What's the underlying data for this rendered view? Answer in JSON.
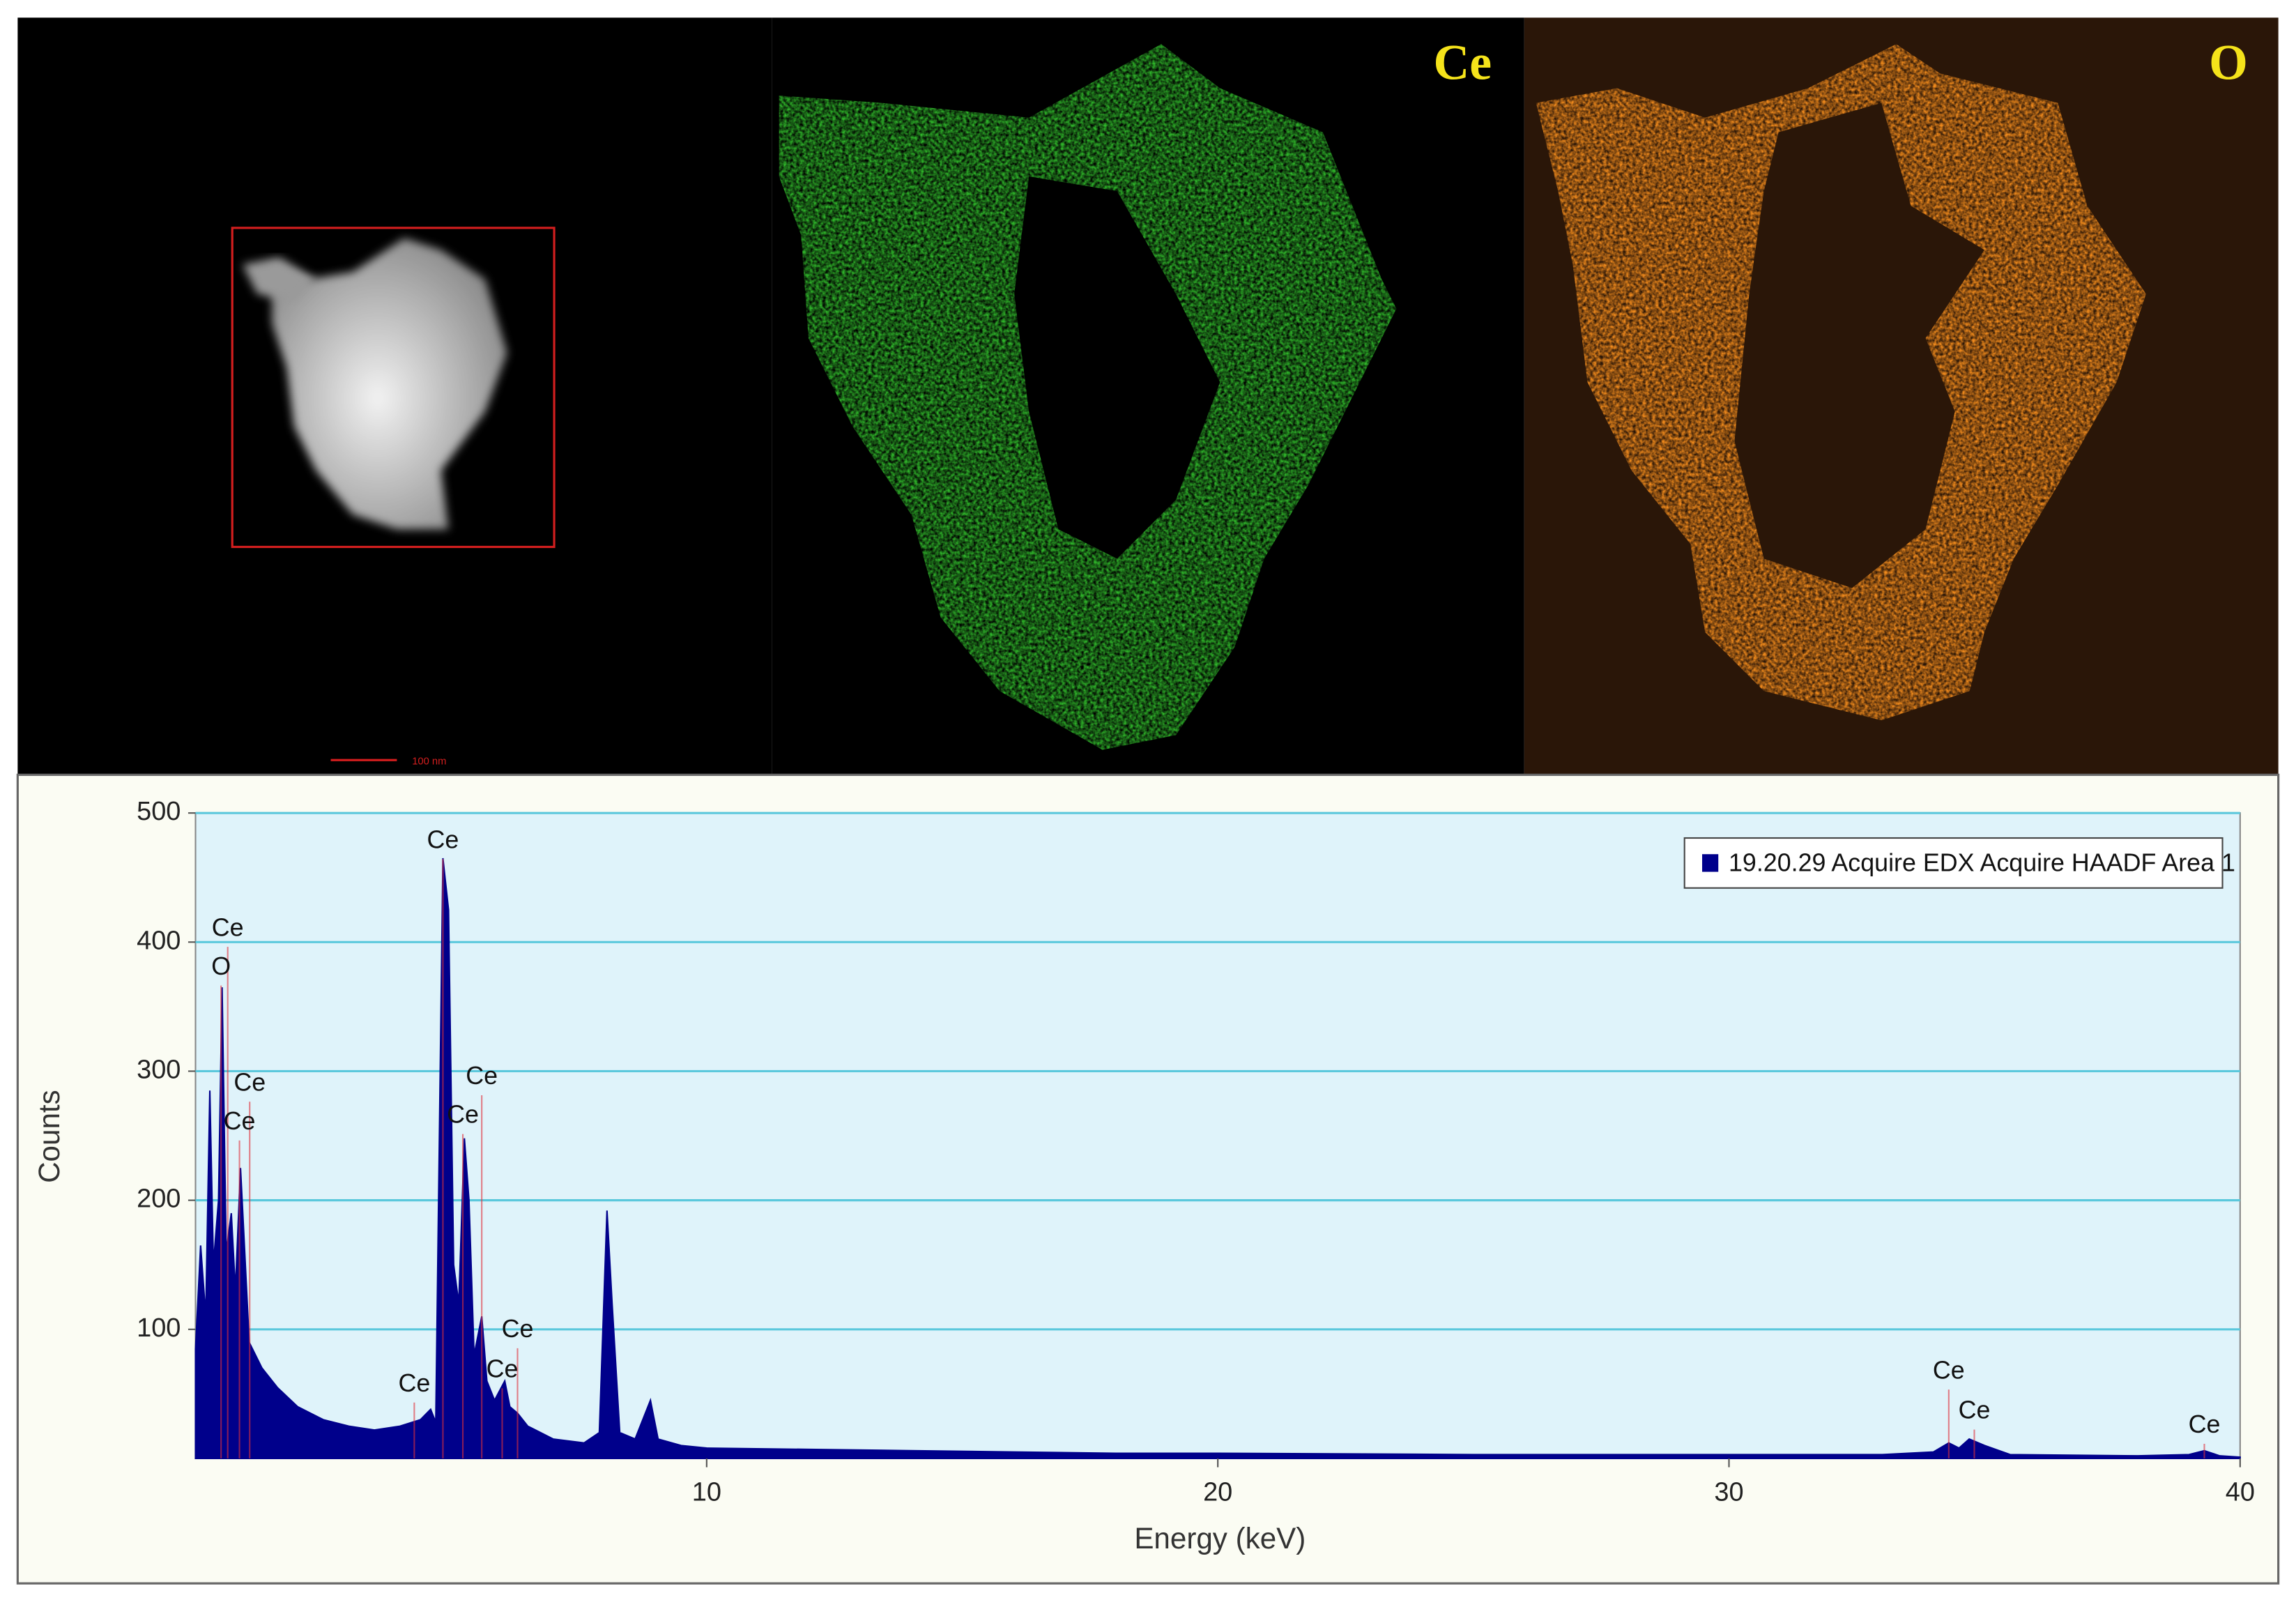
{
  "images": {
    "maps": [
      {
        "label": "Ce"
      },
      {
        "label": "O"
      }
    ],
    "scale_bar": "100 nm"
  },
  "chart_data": {
    "type": "area",
    "x_label": "Energy (keV)",
    "y_label": "Counts",
    "x": [
      0,
      0.1,
      0.2,
      0.28,
      0.35,
      0.45,
      0.52,
      0.6,
      0.7,
      0.78,
      0.88,
      0.95,
      1.05,
      1.3,
      1.6,
      2.0,
      2.5,
      3.0,
      3.5,
      4.0,
      4.4,
      4.6,
      4.7,
      4.84,
      4.95,
      5.05,
      5.15,
      5.26,
      5.35,
      5.45,
      5.6,
      5.7,
      5.85,
      6.05,
      6.15,
      6.3,
      6.5,
      7.0,
      7.6,
      7.9,
      8.05,
      8.15,
      8.3,
      8.6,
      8.9,
      9.05,
      9.5,
      10,
      12,
      14,
      16,
      18,
      20,
      25,
      30,
      33,
      34.0,
      34.3,
      34.5,
      34.7,
      35.0,
      35.5,
      38,
      39.0,
      39.3,
      39.6,
      40
    ],
    "series": [
      {
        "name": "19.20.29 Acquire EDX Acquire HAADF Area 1",
        "color": "#00008b",
        "values": [
          85,
          165,
          110,
          285,
          150,
          200,
          365,
          160,
          190,
          130,
          225,
          170,
          90,
          70,
          55,
          40,
          30,
          25,
          22,
          25,
          30,
          38,
          28,
          465,
          425,
          150,
          120,
          248,
          200,
          80,
          110,
          60,
          45,
          60,
          40,
          35,
          25,
          15,
          12,
          20,
          192,
          120,
          20,
          15,
          45,
          15,
          10,
          8,
          7,
          6,
          5,
          4,
          4,
          3,
          3,
          3,
          5,
          12,
          8,
          15,
          10,
          3,
          2,
          3,
          6,
          2,
          1
        ]
      }
    ],
    "annotations": [
      {
        "text": "Ce",
        "x": 4.84,
        "y": 478
      },
      {
        "text": "Ce",
        "x": 0.63,
        "y": 410
      },
      {
        "text": "O",
        "x": 0.5,
        "y": 380
      },
      {
        "text": "Ce",
        "x": 1.06,
        "y": 290
      },
      {
        "text": "Ce",
        "x": 0.86,
        "y": 260
      },
      {
        "text": "Ce",
        "x": 5.6,
        "y": 295
      },
      {
        "text": "Ce",
        "x": 5.23,
        "y": 265
      },
      {
        "text": "Ce",
        "x": 6.3,
        "y": 99
      },
      {
        "text": "Ce",
        "x": 6.0,
        "y": 68
      },
      {
        "text": "Ce",
        "x": 4.28,
        "y": 57
      },
      {
        "text": "Ce",
        "x": 34.3,
        "y": 67
      },
      {
        "text": "Ce",
        "x": 34.8,
        "y": 36
      },
      {
        "text": "Ce",
        "x": 39.3,
        "y": 25
      }
    ],
    "xlim": [
      0,
      40
    ],
    "xticks": [
      10,
      20,
      30,
      40
    ],
    "ylim": [
      0,
      500
    ],
    "yticks": [
      100,
      200,
      300,
      400,
      500
    ],
    "grid": true,
    "grid_color": "#5bc8dc",
    "plot_background": "#dff3fa",
    "legend": "upper right"
  }
}
